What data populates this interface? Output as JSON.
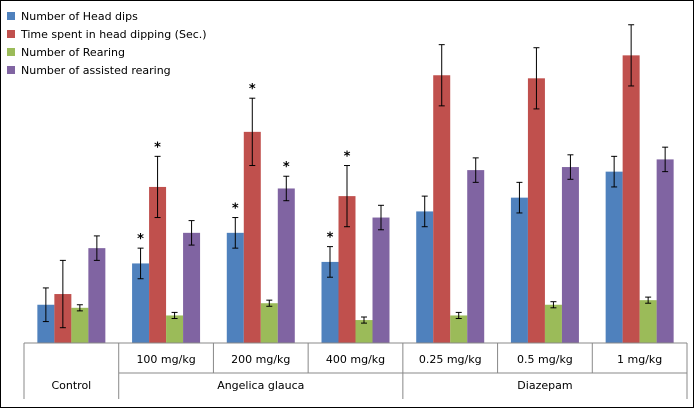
{
  "chart_data": {
    "type": "bar",
    "title": "",
    "xlabel": "",
    "ylabel": "",
    "ylim": [
      0,
      100
    ],
    "grid": false,
    "legend_position": "top-left",
    "groups": [
      {
        "label": "Control",
        "categories": [
          ""
        ]
      },
      {
        "label": "Angelica glauca",
        "categories": [
          "100 mg/kg",
          "200 mg/kg",
          "400 mg/kg"
        ]
      },
      {
        "label": "Diazepam",
        "categories": [
          "0.25 mg/kg",
          "0.5 mg/kg",
          "1 mg/kg"
        ]
      }
    ],
    "categories": [
      "Control",
      "100 mg/kg",
      "200 mg/kg",
      "400 mg/kg",
      "0.25 mg/kg",
      "0.5 mg/kg",
      "1 mg/kg"
    ],
    "series": [
      {
        "name": "Number of Head dips",
        "color": "#4f81bd",
        "values": [
          12.5,
          26,
          36,
          26.5,
          43,
          47.5,
          56
        ],
        "errors": [
          5.5,
          5,
          5,
          5,
          5,
          5,
          5
        ]
      },
      {
        "name": "Time spent in head dipping (Sec.)",
        "color": "#c0504d",
        "values": [
          16,
          51,
          69,
          48,
          87.5,
          86.5,
          94
        ],
        "errors": [
          11,
          10,
          11,
          10,
          10,
          10,
          10
        ]
      },
      {
        "name": "Number of Rearing",
        "color": "#9bbb59",
        "values": [
          11.5,
          9,
          13,
          7.5,
          9,
          12.5,
          14
        ],
        "errors": [
          1,
          1,
          1,
          1,
          1,
          1,
          1
        ]
      },
      {
        "name": "Number of assisted rearing",
        "color": "#8064a2",
        "values": [
          31,
          36,
          50.5,
          41,
          56.5,
          57.5,
          60
        ],
        "errors": [
          4,
          4,
          4,
          4,
          4,
          4,
          4
        ]
      }
    ],
    "annotations": [
      {
        "text": "*",
        "category": "100 mg/kg",
        "series": "Number of Head dips"
      },
      {
        "text": "*",
        "category": "100 mg/kg",
        "series": "Time spent in head dipping (Sec.)"
      },
      {
        "text": "*",
        "category": "200 mg/kg",
        "series": "Number of Head dips"
      },
      {
        "text": "*",
        "category": "200 mg/kg",
        "series": "Time spent in head dipping (Sec.)"
      },
      {
        "text": "*",
        "category": "200 mg/kg",
        "series": "Number of assisted rearing"
      },
      {
        "text": "*",
        "category": "400 mg/kg",
        "series": "Number of Head dips"
      },
      {
        "text": "*",
        "category": "400 mg/kg",
        "series": "Time spent in head dipping (Sec.)"
      }
    ]
  }
}
